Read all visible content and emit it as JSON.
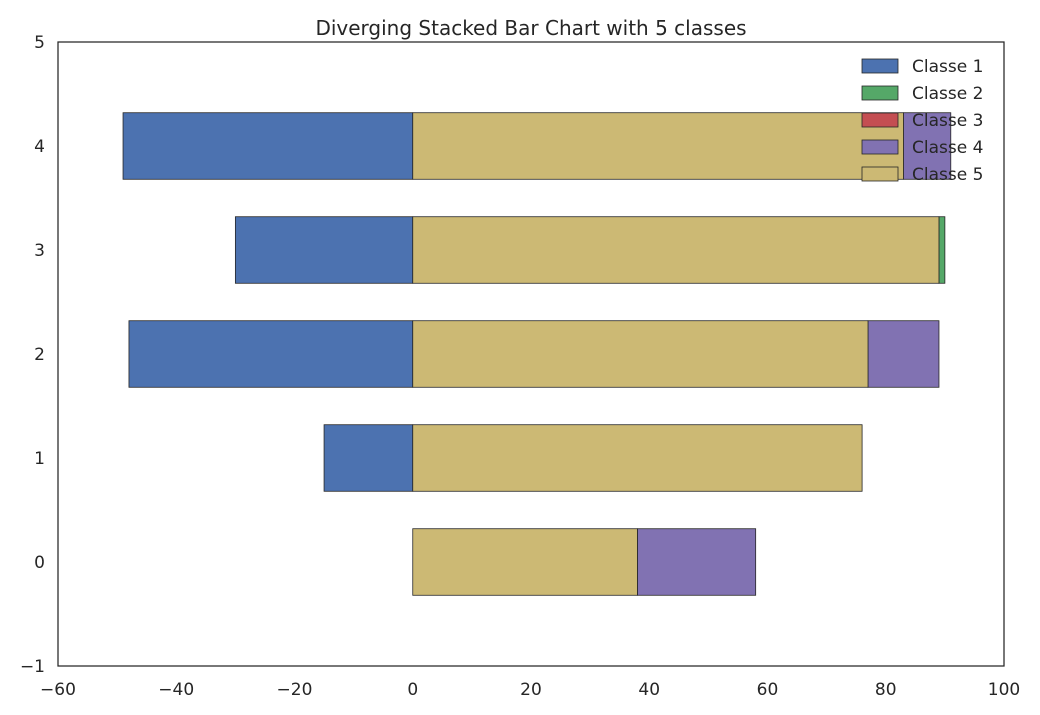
{
  "chart_data": {
    "type": "bar",
    "orientation": "horizontal",
    "stacked": true,
    "diverging": true,
    "title": "Diverging Stacked Bar Chart with 5 classes",
    "xlabel": "",
    "ylabel": "",
    "xlim": [
      -60,
      100
    ],
    "ylim": [
      -1,
      5
    ],
    "xticks": [
      -60,
      -40,
      -20,
      0,
      20,
      40,
      60,
      80,
      100
    ],
    "yticks": [
      -1,
      0,
      1,
      2,
      3,
      4,
      5
    ],
    "categories": [
      0,
      1,
      2,
      3,
      4
    ],
    "grid": false,
    "legend_position": "top-right",
    "series": [
      {
        "name": "Classe 1",
        "color": "#4c72b0",
        "segments": [
          [
            0,
            0
          ],
          [
            -15,
            0
          ],
          [
            -48,
            0
          ],
          [
            -30,
            0
          ],
          [
            -49,
            0
          ]
        ]
      },
      {
        "name": "Classe 2",
        "color": "#55a868",
        "segments": [
          [
            0,
            0
          ],
          [
            0,
            0
          ],
          [
            0,
            0
          ],
          [
            89,
            90
          ],
          [
            0,
            0
          ]
        ]
      },
      {
        "name": "Classe 3",
        "color": "#c44e52",
        "segments": [
          [
            0,
            0
          ],
          [
            0,
            0
          ],
          [
            0,
            0
          ],
          [
            0,
            0
          ],
          [
            0,
            0
          ]
        ]
      },
      {
        "name": "Classe 4",
        "color": "#8172b2",
        "segments": [
          [
            38,
            58
          ],
          [
            0,
            0
          ],
          [
            77,
            89
          ],
          [
            0,
            0
          ],
          [
            83,
            91
          ]
        ]
      },
      {
        "name": "Classe 5",
        "color": "#ccb974",
        "segments": [
          [
            0,
            38
          ],
          [
            0,
            76
          ],
          [
            0,
            77
          ],
          [
            0,
            89
          ],
          [
            0,
            83
          ]
        ]
      }
    ]
  }
}
